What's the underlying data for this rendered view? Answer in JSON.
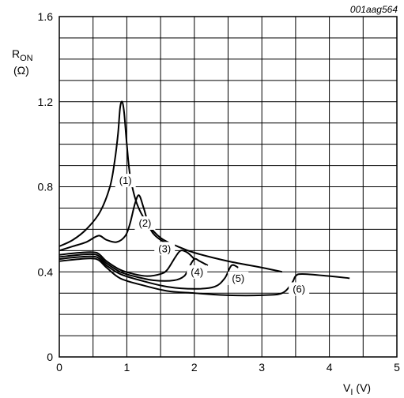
{
  "chart_data": {
    "type": "line",
    "figure_code": "001aag564",
    "xlabel_main": "V",
    "xlabel_sub": "I",
    "xlabel_unit": "(V)",
    "ylabel_main": "R",
    "ylabel_sub": "ON",
    "ylabel_unit": "(Ω)",
    "xlim": [
      0,
      5
    ],
    "ylim": [
      0,
      1.6
    ],
    "grid": true,
    "x_ticks": [
      "0",
      "1",
      "2",
      "3",
      "4",
      "5"
    ],
    "y_ticks": [
      "0",
      "0.4",
      "0.8",
      "1.2",
      "1.6"
    ],
    "series": [
      {
        "name": "(1)",
        "points": [
          [
            0,
            0.52
          ],
          [
            0.2,
            0.55
          ],
          [
            0.4,
            0.6
          ],
          [
            0.6,
            0.68
          ],
          [
            0.75,
            0.8
          ],
          [
            0.82,
            0.92
          ],
          [
            0.87,
            1.05
          ],
          [
            0.9,
            1.17
          ],
          [
            0.93,
            1.2
          ],
          [
            0.96,
            1.15
          ],
          [
            1.0,
            1.0
          ],
          [
            1.05,
            0.85
          ],
          [
            1.15,
            0.72
          ],
          [
            1.3,
            0.63
          ],
          [
            1.5,
            0.56
          ],
          [
            1.75,
            0.52
          ],
          [
            2.0,
            0.49
          ],
          [
            2.5,
            0.45
          ],
          [
            3.0,
            0.42
          ],
          [
            3.3,
            0.4
          ]
        ]
      },
      {
        "name": "(2)",
        "points": [
          [
            0,
            0.5
          ],
          [
            0.2,
            0.52
          ],
          [
            0.4,
            0.54
          ],
          [
            0.58,
            0.57
          ],
          [
            0.7,
            0.55
          ],
          [
            0.85,
            0.54
          ],
          [
            0.98,
            0.57
          ],
          [
            1.05,
            0.63
          ],
          [
            1.12,
            0.72
          ],
          [
            1.18,
            0.76
          ],
          [
            1.25,
            0.7
          ],
          [
            1.35,
            0.6
          ],
          [
            1.5,
            0.55
          ],
          [
            1.7,
            0.52
          ]
        ]
      },
      {
        "name": "(3)",
        "points": [
          [
            0,
            0.48
          ],
          [
            0.3,
            0.49
          ],
          [
            0.55,
            0.49
          ],
          [
            0.7,
            0.45
          ],
          [
            0.9,
            0.41
          ],
          [
            1.1,
            0.39
          ],
          [
            1.3,
            0.38
          ],
          [
            1.5,
            0.39
          ],
          [
            1.6,
            0.41
          ],
          [
            1.72,
            0.47
          ],
          [
            1.8,
            0.5
          ],
          [
            1.9,
            0.49
          ],
          [
            2.0,
            0.46
          ]
        ]
      },
      {
        "name": "(4)",
        "points": [
          [
            0,
            0.47
          ],
          [
            0.3,
            0.48
          ],
          [
            0.55,
            0.48
          ],
          [
            0.7,
            0.44
          ],
          [
            0.9,
            0.4
          ],
          [
            1.1,
            0.38
          ],
          [
            1.4,
            0.36
          ],
          [
            1.7,
            0.36
          ],
          [
            1.85,
            0.38
          ],
          [
            1.92,
            0.42
          ],
          [
            2.0,
            0.46
          ],
          [
            2.08,
            0.45
          ],
          [
            2.2,
            0.43
          ]
        ]
      },
      {
        "name": "(5)",
        "points": [
          [
            0,
            0.46
          ],
          [
            0.3,
            0.47
          ],
          [
            0.55,
            0.47
          ],
          [
            0.7,
            0.43
          ],
          [
            0.9,
            0.39
          ],
          [
            1.2,
            0.36
          ],
          [
            1.6,
            0.33
          ],
          [
            2.0,
            0.32
          ],
          [
            2.3,
            0.33
          ],
          [
            2.45,
            0.37
          ],
          [
            2.55,
            0.43
          ],
          [
            2.65,
            0.42
          ]
        ]
      },
      {
        "name": "(6)",
        "points": [
          [
            0,
            0.45
          ],
          [
            0.3,
            0.46
          ],
          [
            0.55,
            0.46
          ],
          [
            0.7,
            0.42
          ],
          [
            0.9,
            0.37
          ],
          [
            1.2,
            0.34
          ],
          [
            1.6,
            0.31
          ],
          [
            2.0,
            0.3
          ],
          [
            2.5,
            0.29
          ],
          [
            3.0,
            0.29
          ],
          [
            3.3,
            0.3
          ],
          [
            3.45,
            0.35
          ],
          [
            3.5,
            0.38
          ],
          [
            3.6,
            0.39
          ],
          [
            4.0,
            0.38
          ],
          [
            4.3,
            0.37
          ]
        ]
      }
    ]
  }
}
